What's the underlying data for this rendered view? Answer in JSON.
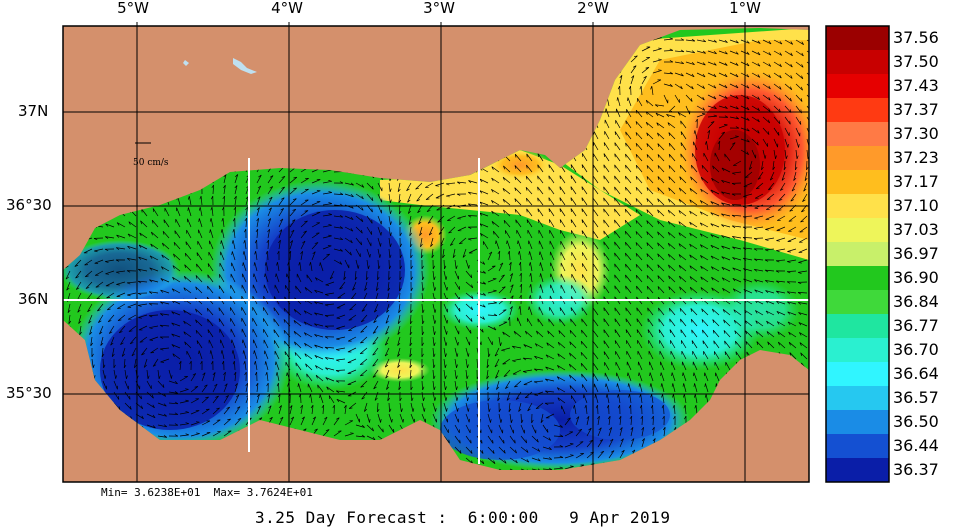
{
  "map": {
    "lon_labels": [
      "5°W",
      "4°W",
      "3°W",
      "2°W",
      "1°W"
    ],
    "lat_labels": [
      "37N",
      "36°30",
      "36N",
      "35°30"
    ],
    "reference_vector_label": "50 cm/s"
  },
  "colorbar": {
    "values": [
      "37.56",
      "37.50",
      "37.43",
      "37.37",
      "37.30",
      "37.23",
      "37.17",
      "37.10",
      "37.03",
      "36.97",
      "36.90",
      "36.84",
      "36.77",
      "36.70",
      "36.64",
      "36.57",
      "36.50",
      "36.44",
      "36.37"
    ],
    "colors": [
      "#9b0000",
      "#c80000",
      "#e60000",
      "#ff3a12",
      "#ff7a45",
      "#ff9a2a",
      "#ffbe1e",
      "#ffe14a",
      "#eef55a",
      "#c8f06a",
      "#22c81e",
      "#3fd93a",
      "#1fe6a0",
      "#2af0d0",
      "#30f5ff",
      "#26c8f0",
      "#1a8ce6",
      "#1450d2",
      "#0a1ea8"
    ]
  },
  "footer": {
    "minmax": "Min= 3.6238E+01  Max= 3.7624E+01",
    "forecast": "3.25 Day Forecast :  6:00:00   9 Apr 2019"
  },
  "colors": {
    "land": "#d4906c",
    "grid": "#000000",
    "section_line": "#ffffff"
  }
}
